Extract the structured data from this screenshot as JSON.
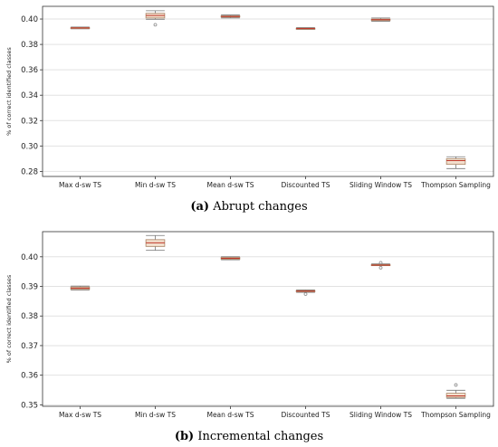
{
  "chart_data": [
    {
      "type": "box",
      "panel": "a",
      "caption_letter": "(a)",
      "caption_text": "Abrupt changes",
      "ylabel": "% of correct identified classes",
      "ylim": [
        0.276,
        0.41
      ],
      "yticks": [
        0.28,
        0.3,
        0.32,
        0.34,
        0.36,
        0.38,
        0.4
      ],
      "ytick_labels": [
        "0.28",
        "0.30",
        "0.32",
        "0.34",
        "0.36",
        "0.38",
        "0.40"
      ],
      "grid": "horizontal",
      "categories": [
        "Max d-sw TS",
        "Min d-sw TS",
        "Mean d-sw TS",
        "Discounted TS",
        "Sliding Window TS",
        "Thompson Sampling"
      ],
      "boxes": [
        {
          "whislo": 0.3923,
          "q1": 0.3928,
          "med": 0.393,
          "q3": 0.3933,
          "whishi": 0.3937,
          "fliers": []
        },
        {
          "whislo": 0.3998,
          "q1": 0.4008,
          "med": 0.4028,
          "q3": 0.4045,
          "whishi": 0.4065,
          "fliers": [
            0.3955
          ]
        },
        {
          "whislo": 0.4008,
          "q1": 0.4015,
          "med": 0.402,
          "q3": 0.4025,
          "whishi": 0.4032,
          "fliers": []
        },
        {
          "whislo": 0.3918,
          "q1": 0.3922,
          "med": 0.3925,
          "q3": 0.3928,
          "whishi": 0.3932,
          "fliers": []
        },
        {
          "whislo": 0.3983,
          "q1": 0.3988,
          "med": 0.3995,
          "q3": 0.4,
          "whishi": 0.4008,
          "fliers": []
        },
        {
          "whislo": 0.2822,
          "q1": 0.2855,
          "med": 0.2885,
          "q3": 0.29,
          "whishi": 0.2915,
          "fliers": []
        }
      ]
    },
    {
      "type": "box",
      "panel": "b",
      "caption_letter": "(b)",
      "caption_text": "Incremental changes",
      "ylabel": "% of correct identified classes",
      "ylim": [
        0.3495,
        0.4085
      ],
      "yticks": [
        0.35,
        0.36,
        0.37,
        0.38,
        0.39,
        0.4
      ],
      "ytick_labels": [
        "0.35",
        "0.36",
        "0.37",
        "0.38",
        "0.39",
        "0.40"
      ],
      "grid": "horizontal",
      "categories": [
        "Max d-sw TS",
        "Min d-sw TS",
        "Mean d-sw TS",
        "Discounted TS",
        "Sliding Window TS",
        "Thompson Sampling"
      ],
      "boxes": [
        {
          "whislo": 0.3888,
          "q1": 0.389,
          "med": 0.3894,
          "q3": 0.3898,
          "whishi": 0.3901,
          "fliers": []
        },
        {
          "whislo": 0.4022,
          "q1": 0.4035,
          "med": 0.4047,
          "q3": 0.4058,
          "whishi": 0.4072,
          "fliers": []
        },
        {
          "whislo": 0.399,
          "q1": 0.3992,
          "med": 0.3995,
          "q3": 0.3998,
          "whishi": 0.4,
          "fliers": []
        },
        {
          "whislo": 0.388,
          "q1": 0.3882,
          "med": 0.3884,
          "q3": 0.3886,
          "whishi": 0.3888,
          "fliers": [
            0.3874
          ]
        },
        {
          "whislo": 0.397,
          "q1": 0.397,
          "med": 0.3972,
          "q3": 0.3974,
          "whishi": 0.3976,
          "fliers": [
            0.3963,
            0.398
          ]
        },
        {
          "whislo": 0.3522,
          "q1": 0.3525,
          "med": 0.353,
          "q3": 0.3539,
          "whishi": 0.3549,
          "fliers": [
            0.3567
          ]
        }
      ]
    }
  ],
  "colors": {
    "box": "#f2dfcd",
    "box_edge": "#a98466",
    "median": "#c0392b",
    "whisker": "#777777",
    "grid": "#e2e2e2",
    "axis": "#333333",
    "flier": "#8a8a8a"
  }
}
